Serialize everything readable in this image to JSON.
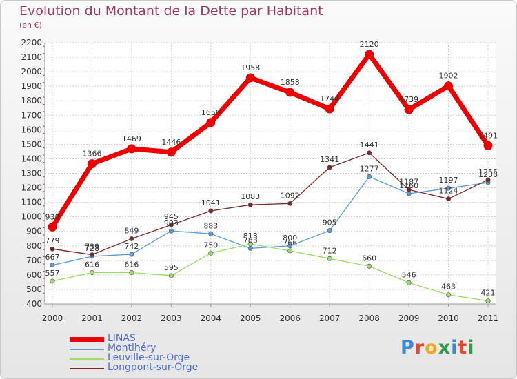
{
  "header": {
    "title": "Evolution du Montant de la Dette par Habitant",
    "subtitle": "(en €)"
  },
  "logo": {
    "text": "Proxiti",
    "colors": [
      "#3a8ad6",
      "#e8462e",
      "#f2a81d",
      "#2e9e46",
      "#3a8ad6",
      "#e8462e",
      "#2e9e46"
    ]
  },
  "chart_data": {
    "type": "line",
    "title": "Evolution du Montant de la Dette par Habitant",
    "subtitle": "(en €)",
    "xlabel": "",
    "ylabel": "",
    "x": [
      "2000",
      "2001",
      "2002",
      "2003",
      "2004",
      "2005",
      "2006",
      "2007",
      "2008",
      "2009",
      "2010",
      "2011"
    ],
    "ylim": [
      400,
      2200
    ],
    "yticks": [
      400,
      500,
      600,
      700,
      800,
      900,
      1000,
      1100,
      1200,
      1300,
      1400,
      1500,
      1600,
      1700,
      1800,
      1900,
      2000,
      2100,
      2200
    ],
    "grid": true,
    "legend_position": "bottom-left",
    "series": [
      {
        "name": "LINAS",
        "color": "#ee0000",
        "emphasis": true,
        "values": [
          930,
          1366,
          1469,
          1446,
          1650,
          1958,
          1858,
          1744,
          2120,
          1739,
          1902,
          1491
        ]
      },
      {
        "name": "Montlhéry",
        "color": "#5c9bd5",
        "emphasis": false,
        "values": [
          667,
          728,
          742,
          903,
          883,
          783,
          800,
          905,
          1277,
          1160,
          1197,
          1236
        ]
      },
      {
        "name": "Leuville-sur-Orge",
        "color": "#9bdc6a",
        "emphasis": false,
        "values": [
          557,
          616,
          616,
          595,
          750,
          813,
          766,
          712,
          660,
          546,
          463,
          421
        ]
      },
      {
        "name": "Longpont-sur-Orge",
        "color": "#7a2a2a",
        "emphasis": false,
        "values": [
          779,
          739,
          849,
          945,
          1041,
          1083,
          1092,
          1341,
          1441,
          1187,
          1124,
          1255
        ]
      }
    ]
  }
}
